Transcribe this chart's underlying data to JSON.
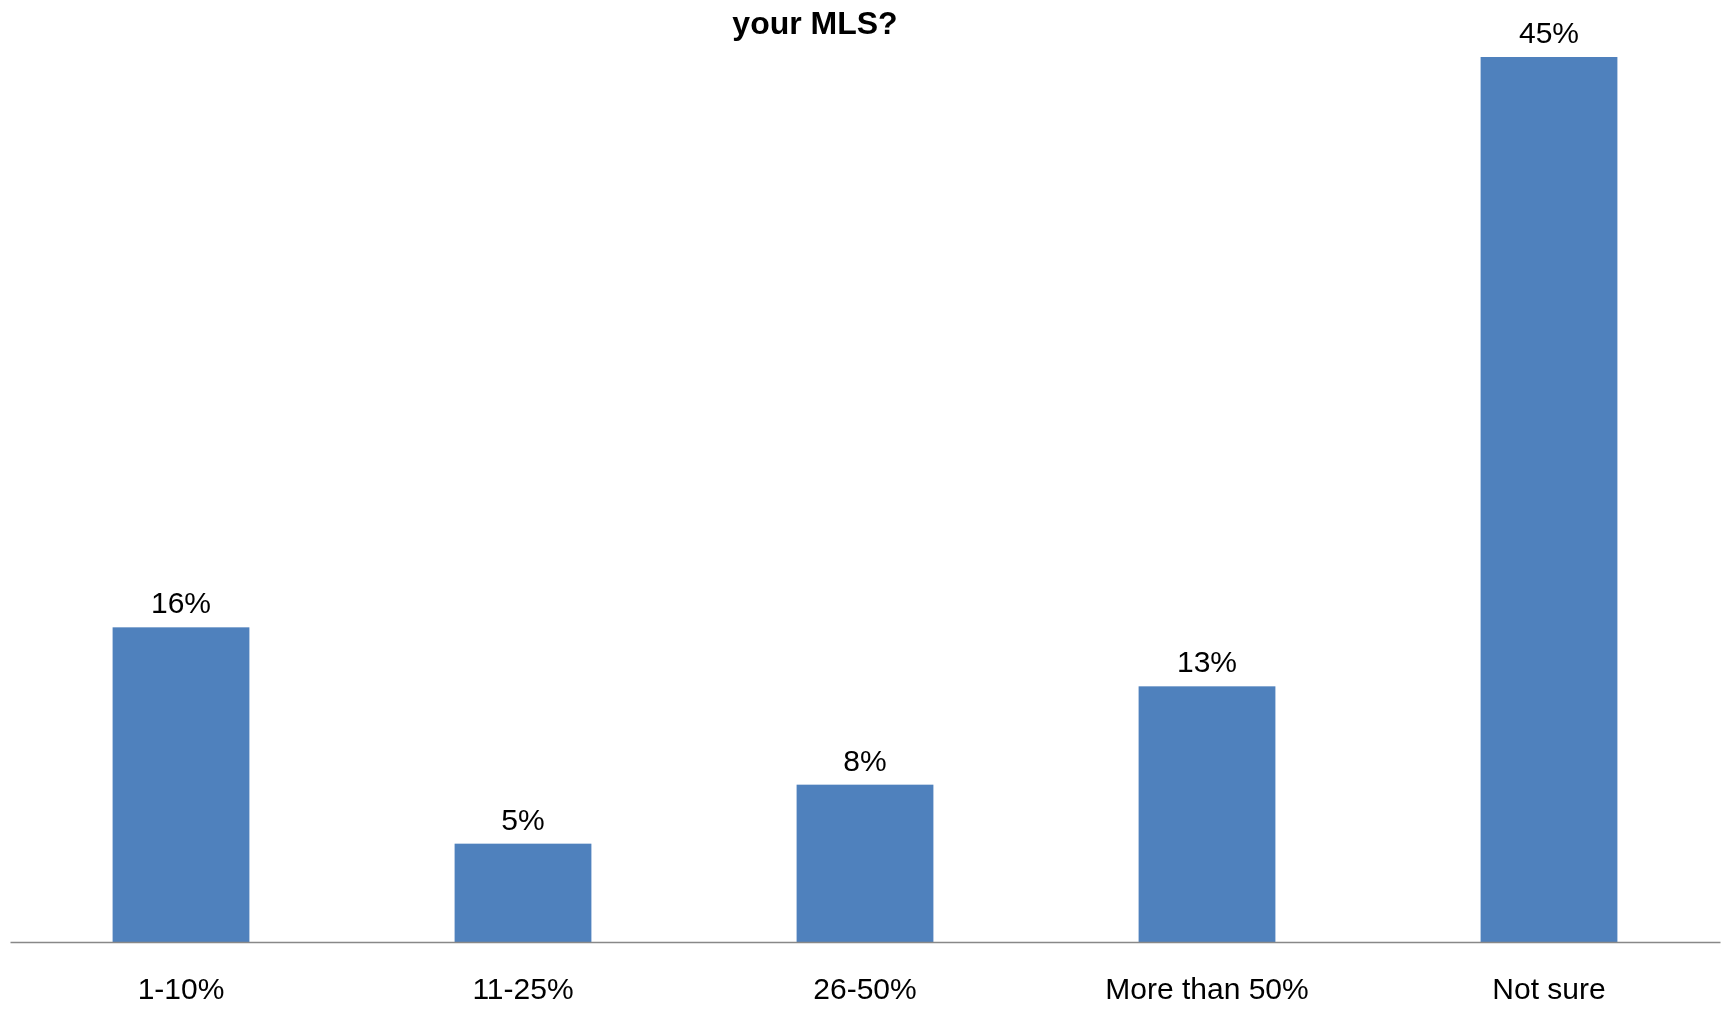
{
  "chart_data": {
    "type": "bar",
    "title": "your MLS?",
    "categories": [
      "1-10%",
      "11-25%",
      "26-50%",
      "More than 50%",
      "Not sure"
    ],
    "values": [
      16,
      5,
      8,
      13,
      45
    ],
    "value_labels": [
      "16%",
      "5%",
      "8%",
      "13%",
      "45%"
    ],
    "color": "#4f81bd"
  }
}
